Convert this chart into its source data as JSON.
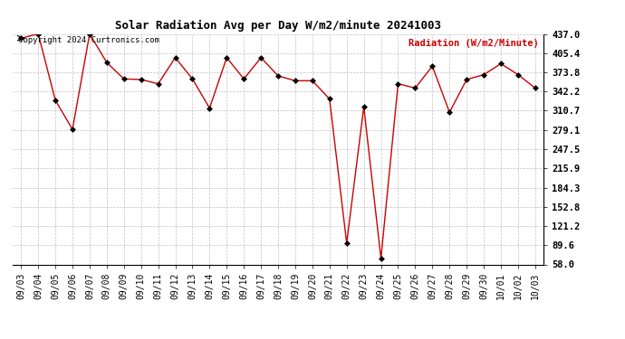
{
  "title": "Solar Radiation Avg per Day W/m2/minute 20241003",
  "ylabel": "Radiation (W/m2/Minute)",
  "copyright": "Copyright 2024 Curtronics.com",
  "line_color": "#cc0000",
  "marker_color": "#000000",
  "background_color": "#ffffff",
  "grid_color": "#b0b0b0",
  "ylabel_color": "#cc0000",
  "ylim": [
    58.0,
    437.0
  ],
  "yticks": [
    58.0,
    89.6,
    121.2,
    152.8,
    184.3,
    215.9,
    247.5,
    279.1,
    310.7,
    342.2,
    373.8,
    405.4,
    437.0
  ],
  "dates": [
    "09/03",
    "09/04",
    "09/05",
    "09/06",
    "09/07",
    "09/08",
    "09/09",
    "09/10",
    "09/11",
    "09/12",
    "09/13",
    "09/14",
    "09/15",
    "09/16",
    "09/17",
    "09/18",
    "09/19",
    "09/20",
    "09/21",
    "09/22",
    "09/23",
    "09/24",
    "09/25",
    "09/26",
    "09/27",
    "09/28",
    "09/29",
    "09/30",
    "10/01",
    "10/02",
    "10/03"
  ],
  "values": [
    430.0,
    437.0,
    328.0,
    280.0,
    437.0,
    390.0,
    363.0,
    362.0,
    355.0,
    398.0,
    363.0,
    315.0,
    398.0,
    363.0,
    398.0,
    368.0,
    360.0,
    360.0,
    330.0,
    93.0,
    317.0,
    68.0,
    355.0,
    348.0,
    384.0,
    308.0,
    362.0,
    370.0,
    388.0,
    370.0,
    348.0
  ]
}
